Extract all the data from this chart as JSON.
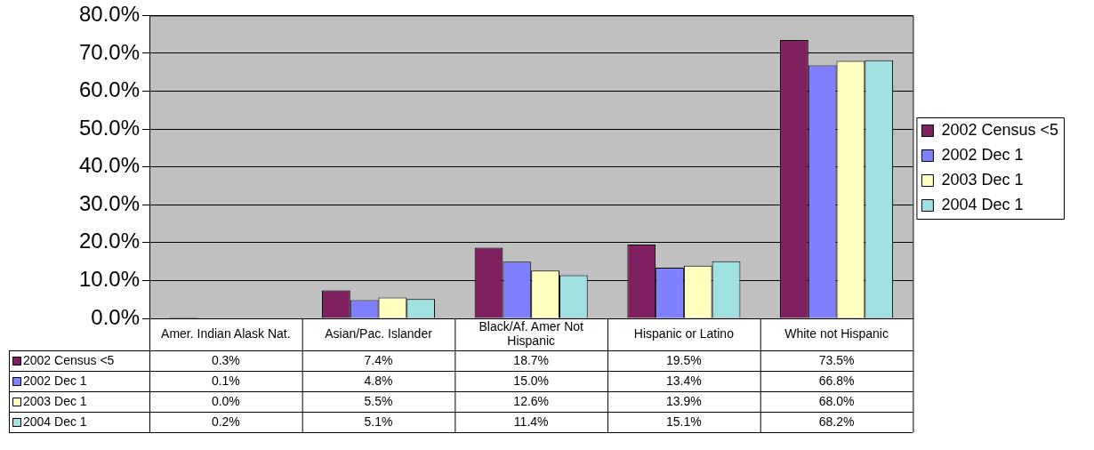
{
  "chart_data": {
    "type": "bar",
    "categories": [
      "Amer. Indian Alask Nat.",
      "Asian/Pac. Islander",
      "Black/Af. Amer Not Hispanic",
      "Hispanic or Latino",
      "White not Hispanic"
    ],
    "series": [
      {
        "name": "2002 Census <5",
        "color": "#7f2060",
        "values": [
          0.3,
          7.4,
          18.7,
          19.5,
          73.5
        ],
        "value_labels": [
          "0.3%",
          "7.4%",
          "18.7%",
          "19.5%",
          "73.5%"
        ]
      },
      {
        "name": "2002 Dec 1",
        "color": "#8080ff",
        "values": [
          0.1,
          4.8,
          15.0,
          13.4,
          66.8
        ],
        "value_labels": [
          "0.1%",
          "4.8%",
          "15.0%",
          "13.4%",
          "66.8%"
        ]
      },
      {
        "name": "2003 Dec 1",
        "color": "#ffffc0",
        "values": [
          0.0,
          5.5,
          12.6,
          13.9,
          68.0
        ],
        "value_labels": [
          "0.0%",
          "5.5%",
          "12.6%",
          "13.9%",
          "68.0%"
        ]
      },
      {
        "name": "2004 Dec 1",
        "color": "#a0e0e0",
        "values": [
          0.2,
          5.1,
          11.4,
          15.1,
          68.2
        ],
        "value_labels": [
          "0.2%",
          "5.1%",
          "11.4%",
          "15.1%",
          "68.2%"
        ]
      }
    ],
    "ylim": [
      0,
      80
    ],
    "yticks": [
      {
        "value": 0,
        "label": "0.0%"
      },
      {
        "value": 10,
        "label": "10.0%"
      },
      {
        "value": 20,
        "label": "20.0%"
      },
      {
        "value": 30,
        "label": "30.0%"
      },
      {
        "value": 40,
        "label": "40.0%"
      },
      {
        "value": 50,
        "label": "50.0%"
      },
      {
        "value": 60,
        "label": "60.0%"
      },
      {
        "value": 70,
        "label": "70.0%"
      },
      {
        "value": 80,
        "label": "80.0%"
      }
    ],
    "grid": "y",
    "legend": "right"
  }
}
